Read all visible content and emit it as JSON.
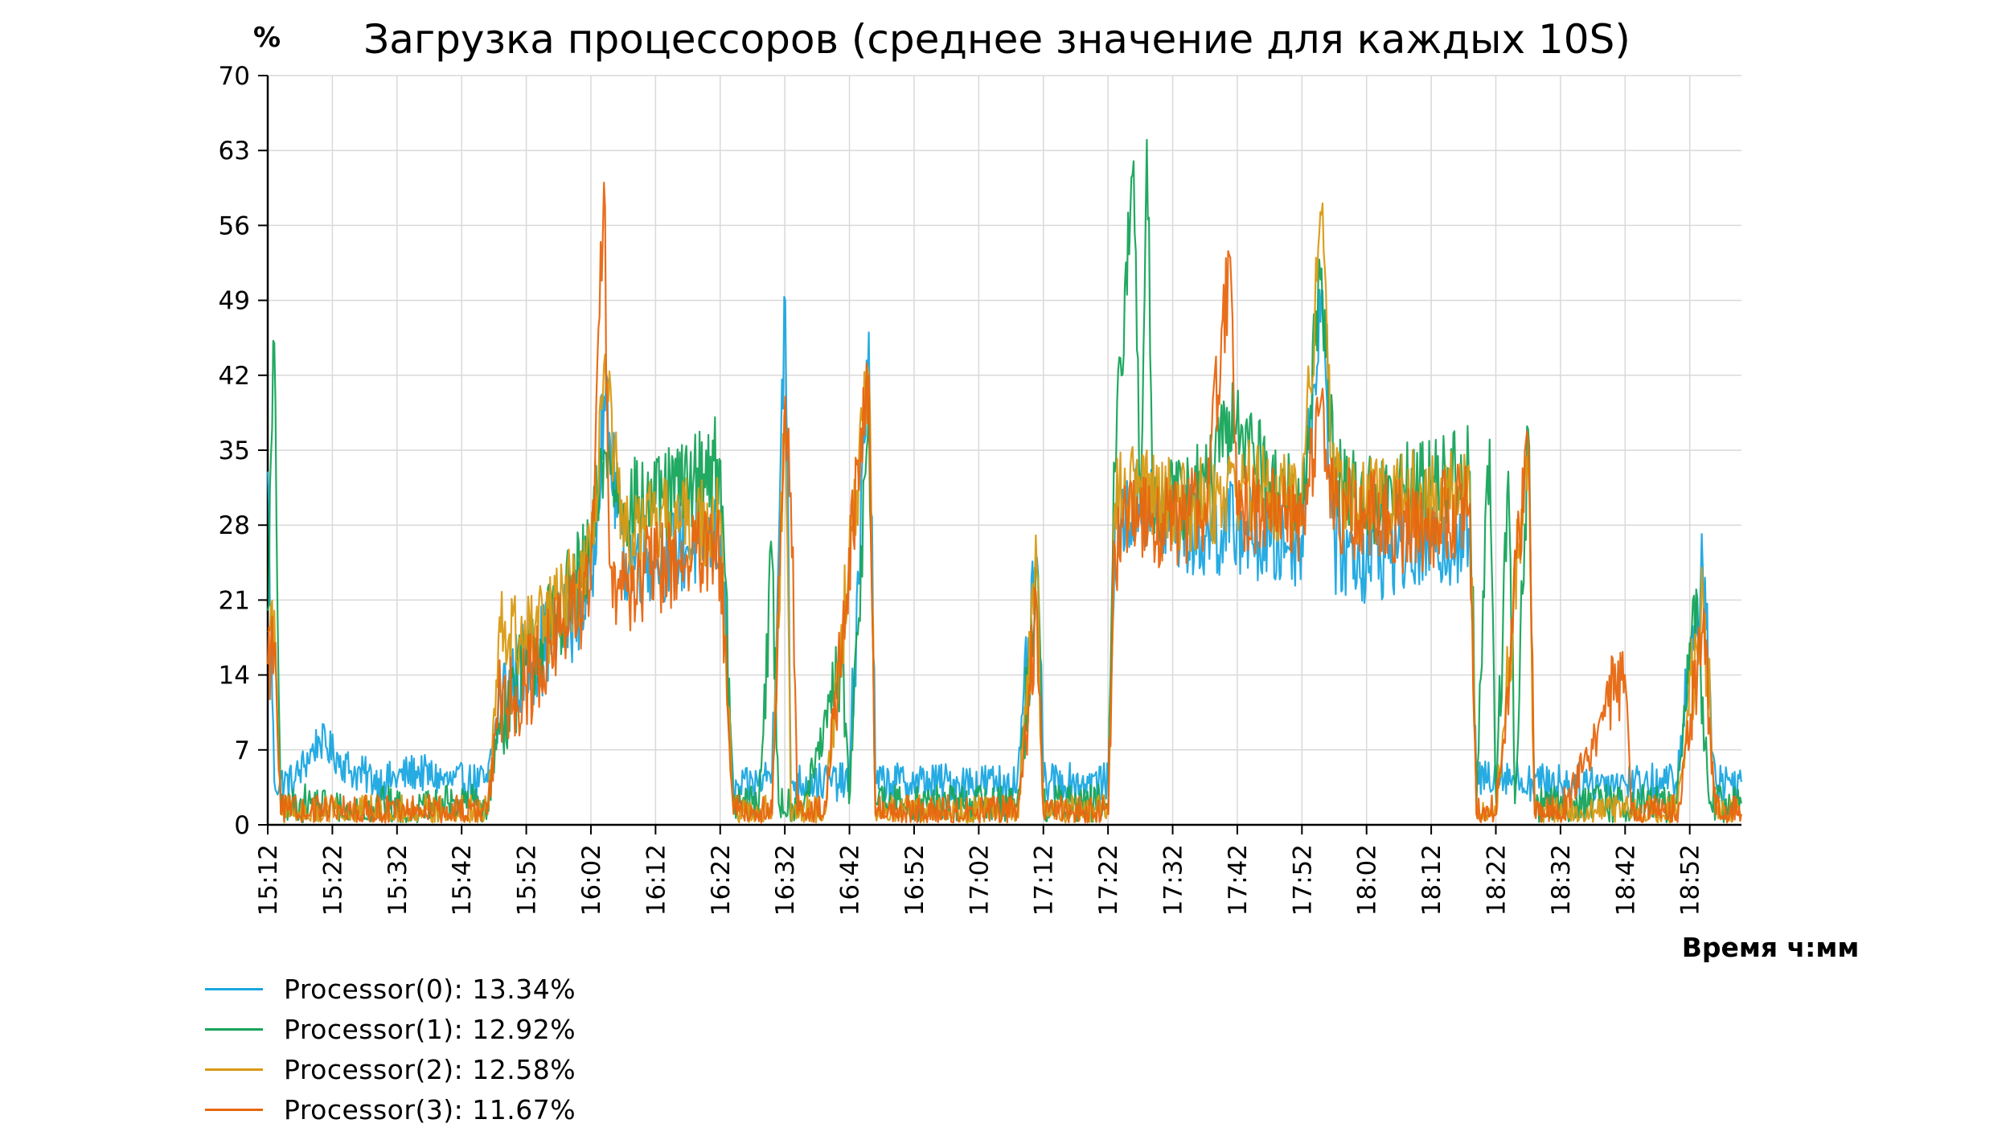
{
  "chart_data": {
    "type": "line",
    "title": "Загрузка процессоров (среднее значение для каждых 10S)",
    "ylabel": "%",
    "xlabel": "Время ч:мм",
    "ylim": [
      0,
      70
    ],
    "yticks": [
      0,
      7,
      14,
      21,
      28,
      35,
      42,
      49,
      56,
      63,
      70
    ],
    "xlim": [
      "15:12",
      "19:00"
    ],
    "xticks": [
      "15:12",
      "15:22",
      "15:32",
      "15:42",
      "15:52",
      "16:02",
      "16:12",
      "16:22",
      "16:32",
      "16:42",
      "16:52",
      "17:02",
      "17:12",
      "17:22",
      "17:32",
      "17:42",
      "17:52",
      "18:02",
      "18:12",
      "18:22",
      "18:32",
      "18:42",
      "18:52"
    ],
    "grid": true,
    "legend_position": "bottom-left",
    "series": [
      {
        "name": "Processor(0): 13.34%",
        "color": "#1aa7e0",
        "points": [
          [
            "15:12",
            33
          ],
          [
            "15:13",
            4
          ],
          [
            "15:16",
            4
          ],
          [
            "15:20",
            8
          ],
          [
            "15:25",
            5
          ],
          [
            "15:30",
            4
          ],
          [
            "15:35",
            5
          ],
          [
            "15:40",
            4
          ],
          [
            "15:46",
            4
          ],
          [
            "15:48",
            12
          ],
          [
            "15:52",
            15
          ],
          [
            "15:57",
            18
          ],
          [
            "16:02",
            22
          ],
          [
            "16:04",
            40
          ],
          [
            "16:07",
            25
          ],
          [
            "16:12",
            25
          ],
          [
            "16:17",
            26
          ],
          [
            "16:22",
            27
          ],
          [
            "16:24",
            3
          ],
          [
            "16:28",
            4
          ],
          [
            "16:30",
            5
          ],
          [
            "16:32",
            49
          ],
          [
            "16:33",
            4
          ],
          [
            "16:38",
            4
          ],
          [
            "16:42",
            4
          ],
          [
            "16:45",
            46
          ],
          [
            "16:46",
            4
          ],
          [
            "16:52",
            4
          ],
          [
            "17:00",
            4
          ],
          [
            "17:08",
            4
          ],
          [
            "17:11",
            25
          ],
          [
            "17:12",
            4
          ],
          [
            "17:18",
            4
          ],
          [
            "17:22",
            4
          ],
          [
            "17:23",
            28
          ],
          [
            "17:27",
            30
          ],
          [
            "17:32",
            28
          ],
          [
            "17:37",
            27
          ],
          [
            "17:42",
            28
          ],
          [
            "17:47",
            26
          ],
          [
            "17:52",
            27
          ],
          [
            "17:55",
            50
          ],
          [
            "17:57",
            26
          ],
          [
            "18:02",
            25
          ],
          [
            "18:07",
            26
          ],
          [
            "18:12",
            26
          ],
          [
            "18:18",
            27
          ],
          [
            "18:19",
            4
          ],
          [
            "18:22",
            5
          ],
          [
            "18:27",
            4
          ],
          [
            "18:32",
            4
          ],
          [
            "18:42",
            4
          ],
          [
            "18:50",
            4
          ],
          [
            "18:54",
            24
          ],
          [
            "18:56",
            4
          ],
          [
            "19:00",
            4
          ]
        ]
      },
      {
        "name": "Processor(1): 12.92%",
        "color": "#16a45a",
        "points": [
          [
            "15:12",
            20
          ],
          [
            "15:13",
            45
          ],
          [
            "15:14",
            1
          ],
          [
            "15:17",
            2
          ],
          [
            "15:20",
            2
          ],
          [
            "15:25",
            1
          ],
          [
            "15:30",
            2
          ],
          [
            "15:35",
            1
          ],
          [
            "15:40",
            2
          ],
          [
            "15:46",
            2
          ],
          [
            "15:48",
            10
          ],
          [
            "15:52",
            15
          ],
          [
            "15:57",
            20
          ],
          [
            "16:02",
            25
          ],
          [
            "16:04",
            35
          ],
          [
            "16:07",
            30
          ],
          [
            "16:12",
            30
          ],
          [
            "16:17",
            32
          ],
          [
            "16:22",
            34
          ],
          [
            "16:24",
            2
          ],
          [
            "16:28",
            2
          ],
          [
            "16:30",
            25
          ],
          [
            "16:31",
            2
          ],
          [
            "16:35",
            2
          ],
          [
            "16:41",
            15
          ],
          [
            "16:42",
            2
          ],
          [
            "16:45",
            40
          ],
          [
            "16:46",
            2
          ],
          [
            "16:52",
            2
          ],
          [
            "17:00",
            2
          ],
          [
            "17:08",
            2
          ],
          [
            "17:11",
            24
          ],
          [
            "17:12",
            2
          ],
          [
            "17:18",
            2
          ],
          [
            "17:22",
            2
          ],
          [
            "17:23",
            33
          ],
          [
            "17:26",
            62
          ],
          [
            "17:27",
            30
          ],
          [
            "17:28",
            64
          ],
          [
            "17:29",
            30
          ],
          [
            "17:32",
            30
          ],
          [
            "17:37",
            32
          ],
          [
            "17:42",
            38
          ],
          [
            "17:47",
            32
          ],
          [
            "17:52",
            30
          ],
          [
            "17:55",
            52
          ],
          [
            "17:57",
            32
          ],
          [
            "18:02",
            30
          ],
          [
            "18:07",
            31
          ],
          [
            "18:12",
            32
          ],
          [
            "18:18",
            33
          ],
          [
            "18:19",
            2
          ],
          [
            "18:21",
            36
          ],
          [
            "18:22",
            2
          ],
          [
            "18:24",
            33
          ],
          [
            "18:25",
            2
          ],
          [
            "18:27",
            37
          ],
          [
            "18:28",
            2
          ],
          [
            "18:32",
            2
          ],
          [
            "18:42",
            2
          ],
          [
            "18:50",
            2
          ],
          [
            "18:53",
            22
          ],
          [
            "18:55",
            2
          ],
          [
            "19:00",
            2
          ]
        ]
      },
      {
        "name": "Processor(2): 12.58%",
        "color": "#d99a14",
        "points": [
          [
            "15:12",
            18
          ],
          [
            "15:13",
            20
          ],
          [
            "15:14",
            1
          ],
          [
            "15:20",
            1
          ],
          [
            "15:25",
            1
          ],
          [
            "15:30",
            1
          ],
          [
            "15:35",
            1
          ],
          [
            "15:40",
            1
          ],
          [
            "15:46",
            1
          ],
          [
            "15:48",
            18
          ],
          [
            "15:52",
            17
          ],
          [
            "15:57",
            20
          ],
          [
            "16:02",
            24
          ],
          [
            "16:04",
            43
          ],
          [
            "16:07",
            26
          ],
          [
            "16:12",
            28
          ],
          [
            "16:17",
            28
          ],
          [
            "16:22",
            29
          ],
          [
            "16:24",
            1
          ],
          [
            "16:30",
            1
          ],
          [
            "16:32",
            39
          ],
          [
            "16:33",
            1
          ],
          [
            "16:38",
            1
          ],
          [
            "16:45",
            42
          ],
          [
            "16:46",
            1
          ],
          [
            "16:52",
            1
          ],
          [
            "17:00",
            1
          ],
          [
            "17:08",
            1
          ],
          [
            "17:11",
            24
          ],
          [
            "17:12",
            1
          ],
          [
            "17:18",
            1
          ],
          [
            "17:22",
            1
          ],
          [
            "17:23",
            30
          ],
          [
            "17:27",
            32
          ],
          [
            "17:32",
            30
          ],
          [
            "17:37",
            30
          ],
          [
            "17:42",
            32
          ],
          [
            "17:47",
            31
          ],
          [
            "17:52",
            30
          ],
          [
            "17:55",
            57
          ],
          [
            "17:57",
            31
          ],
          [
            "18:02",
            30
          ],
          [
            "18:07",
            31
          ],
          [
            "18:12",
            30
          ],
          [
            "18:18",
            31
          ],
          [
            "18:19",
            1
          ],
          [
            "18:22",
            1
          ],
          [
            "18:27",
            36
          ],
          [
            "18:28",
            1
          ],
          [
            "18:32",
            1
          ],
          [
            "18:42",
            1
          ],
          [
            "18:50",
            1
          ],
          [
            "18:54",
            22
          ],
          [
            "18:56",
            1
          ],
          [
            "19:00",
            1
          ]
        ]
      },
      {
        "name": "Processor(3): 11.67%",
        "color": "#e8660f",
        "points": [
          [
            "15:12",
            15
          ],
          [
            "15:13",
            17
          ],
          [
            "15:14",
            1
          ],
          [
            "15:20",
            1
          ],
          [
            "15:25",
            1
          ],
          [
            "15:30",
            1
          ],
          [
            "15:35",
            1
          ],
          [
            "15:40",
            1
          ],
          [
            "15:46",
            1
          ],
          [
            "15:48",
            12
          ],
          [
            "15:52",
            13
          ],
          [
            "15:57",
            18
          ],
          [
            "16:02",
            22
          ],
          [
            "16:04",
            60
          ],
          [
            "16:05",
            24
          ],
          [
            "16:07",
            22
          ],
          [
            "16:12",
            24
          ],
          [
            "16:17",
            25
          ],
          [
            "16:22",
            25
          ],
          [
            "16:24",
            1
          ],
          [
            "16:30",
            1
          ],
          [
            "16:32",
            40
          ],
          [
            "16:33",
            31
          ],
          [
            "16:34",
            1
          ],
          [
            "16:38",
            1
          ],
          [
            "16:45",
            42
          ],
          [
            "16:46",
            1
          ],
          [
            "16:52",
            1
          ],
          [
            "17:00",
            1
          ],
          [
            "17:08",
            1
          ],
          [
            "17:11",
            20
          ],
          [
            "17:12",
            1
          ],
          [
            "17:18",
            1
          ],
          [
            "17:22",
            1
          ],
          [
            "17:23",
            26
          ],
          [
            "17:27",
            29
          ],
          [
            "17:32",
            28
          ],
          [
            "17:37",
            30
          ],
          [
            "17:41",
            53
          ],
          [
            "17:42",
            29
          ],
          [
            "17:47",
            30
          ],
          [
            "17:52",
            28
          ],
          [
            "17:55",
            40
          ],
          [
            "17:57",
            29
          ],
          [
            "18:02",
            29
          ],
          [
            "18:07",
            28
          ],
          [
            "18:12",
            28
          ],
          [
            "18:18",
            30
          ],
          [
            "18:19",
            1
          ],
          [
            "18:22",
            1
          ],
          [
            "18:27",
            36
          ],
          [
            "18:28",
            1
          ],
          [
            "18:32",
            1
          ],
          [
            "18:42",
            14
          ],
          [
            "18:43",
            1
          ],
          [
            "18:50",
            1
          ],
          [
            "18:54",
            18
          ],
          [
            "18:56",
            1
          ],
          [
            "19:00",
            1
          ]
        ]
      }
    ]
  }
}
